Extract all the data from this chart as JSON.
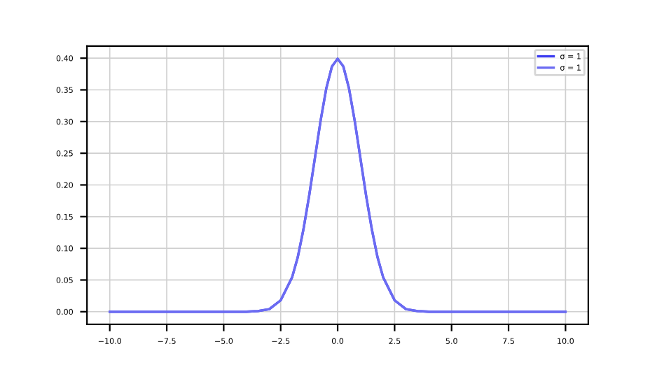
{
  "chart_data": {
    "type": "line",
    "x": [
      -10,
      -8,
      -6,
      -5,
      -4,
      -3.5,
      -3,
      -2.5,
      -2,
      -1.75,
      -1.5,
      -1.25,
      -1,
      -0.75,
      -0.5,
      -0.25,
      0,
      0.25,
      0.5,
      0.75,
      1,
      1.25,
      1.5,
      1.75,
      2,
      2.5,
      3,
      3.5,
      4,
      5,
      6,
      8,
      10
    ],
    "series": [
      {
        "name": "σ = 1",
        "color": "#3b3bf0",
        "values": [
          0,
          0,
          0,
          0,
          0,
          0.001,
          0.004,
          0.018,
          0.054,
          0.086,
          0.13,
          0.183,
          0.242,
          0.301,
          0.352,
          0.387,
          0.399,
          0.387,
          0.352,
          0.301,
          0.242,
          0.183,
          0.13,
          0.086,
          0.054,
          0.018,
          0.004,
          0.001,
          0,
          0,
          0,
          0,
          0
        ]
      },
      {
        "name": "σ = 1",
        "color": "#6b6bf2",
        "values": [
          0,
          0,
          0,
          0,
          0,
          0.001,
          0.004,
          0.018,
          0.054,
          0.086,
          0.13,
          0.183,
          0.242,
          0.301,
          0.352,
          0.387,
          0.399,
          0.387,
          0.352,
          0.301,
          0.242,
          0.183,
          0.13,
          0.086,
          0.054,
          0.018,
          0.004,
          0.001,
          0,
          0,
          0,
          0,
          0
        ]
      }
    ],
    "xlim": [
      -11,
      11
    ],
    "xticks": [
      {
        "value": -10,
        "label": "−10.0"
      },
      {
        "value": -7.5,
        "label": "−7.5"
      },
      {
        "value": -5,
        "label": "−5.0"
      },
      {
        "value": -2.5,
        "label": "−2.5"
      },
      {
        "value": 0,
        "label": "0.0"
      },
      {
        "value": 2.5,
        "label": "2.5"
      },
      {
        "value": 5,
        "label": "5.0"
      },
      {
        "value": 7.5,
        "label": "7.5"
      },
      {
        "value": 10,
        "label": "10.0"
      }
    ],
    "ylim": [
      -0.02,
      0.419
    ],
    "yticks": [
      {
        "value": 0,
        "label": "0.00"
      },
      {
        "value": 0.05,
        "label": "0.05"
      },
      {
        "value": 0.1,
        "label": "0.10"
      },
      {
        "value": 0.15,
        "label": "0.15"
      },
      {
        "value": 0.2,
        "label": "0.20"
      },
      {
        "value": 0.25,
        "label": "0.25"
      },
      {
        "value": 0.3,
        "label": "0.30"
      },
      {
        "value": 0.35,
        "label": "0.35"
      },
      {
        "value": 0.4,
        "label": "0.40"
      }
    ],
    "grid": true,
    "legend": "top right",
    "marker": "none",
    "line_style": "solid"
  }
}
